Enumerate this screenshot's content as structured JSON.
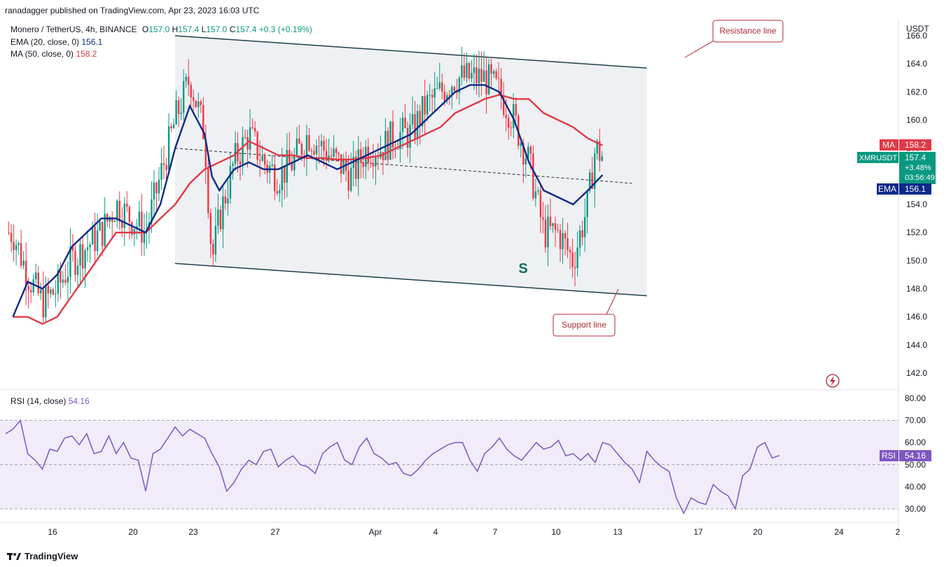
{
  "publisher": "ranadagger published on TradingView.com, Apr 23, 2023 16:03 UTC",
  "legend": {
    "symbol": "Monero / TetherUS, 4h, BINANCE",
    "ohlc": {
      "o_label": "O",
      "o": "157.0",
      "h_label": "H",
      "h": "157.4",
      "l_label": "L",
      "l": "157.0",
      "c_label": "C",
      "c": "157.4",
      "change": "+0.3 (+0.19%)"
    },
    "ema_label": "EMA (20, close, 0)",
    "ema_value": "156.1",
    "ma_label": "MA (50, close, 0)",
    "ma_value": "158.2",
    "rsi_label": "RSI (14, close)",
    "rsi_value": "54.16"
  },
  "annotations": {
    "resistance": "Resistance line",
    "support": "Support line",
    "pattern_letter": "S"
  },
  "badges": {
    "ma_tag": "MA",
    "ma_price": "158.2",
    "symbol_tag": "XMRUSDT",
    "last_price": "157.4",
    "change_pct": "+3.48%",
    "countdown": "03:56:49",
    "ema_tag": "EMA",
    "ema_price": "156.1",
    "rsi_tag": "RSI",
    "rsi_value": "54.16"
  },
  "footer": {
    "brand": "TradingView"
  },
  "colors": {
    "up": "#089981",
    "down": "#f23645",
    "ema": "#0d2a8a",
    "ma": "#e03a47",
    "rsi": "#7e57c2",
    "channel": "#1e3f4a",
    "annotation": "#b22833"
  },
  "chart_data": [
    {
      "type": "candlestick",
      "title": "Monero / TetherUS, 4h, BINANCE",
      "ylabel": "USDT",
      "ylim": [
        141,
        167
      ],
      "y_ticks": [
        "142.0",
        "144.0",
        "146.0",
        "148.0",
        "150.0",
        "152.0",
        "154.0",
        "156.0",
        "158.0",
        "160.0",
        "162.0",
        "164.0",
        "166.0"
      ],
      "x_ticks": [
        "16",
        "20",
        "23",
        "27",
        "Apr",
        "4",
        "7",
        "10",
        "13",
        "17",
        "20",
        "24",
        "2"
      ],
      "grid": false,
      "series": [
        {
          "name": "XMRUSDT",
          "anchors": [
            [
              14,
              152
            ],
            [
              15,
              149
            ],
            [
              16,
              147
            ],
            [
              17,
              148
            ],
            [
              18,
              150
            ],
            [
              19,
              151
            ],
            [
              20,
              152
            ],
            [
              21,
              154
            ],
            [
              22,
              153
            ],
            [
              23,
              152
            ],
            [
              24,
              156
            ],
            [
              25,
              160
            ],
            [
              26,
              163
            ],
            [
              27,
              159
            ],
            [
              27.5,
              150
            ],
            [
              28,
              153
            ],
            [
              29,
              157
            ],
            [
              30,
              159
            ],
            [
              31,
              157
            ],
            [
              32,
              156
            ],
            [
              33,
              157
            ],
            [
              34,
              159
            ],
            [
              35,
              158
            ],
            [
              36,
              157
            ],
            [
              37,
              156
            ],
            [
              38,
              158
            ],
            [
              39,
              158
            ],
            [
              40,
              159
            ],
            [
              41,
              159
            ],
            [
              42,
              161
            ],
            [
              43,
              162
            ],
            [
              44,
              163
            ],
            [
              45,
              163
            ],
            [
              46,
              163
            ],
            [
              47,
              162
            ],
            [
              48,
              160
            ],
            [
              49,
              157
            ],
            [
              50,
              152
            ],
            [
              51,
              152
            ],
            [
              52,
              150
            ],
            [
              53,
              154
            ],
            [
              53.5,
              158
            ],
            [
              54,
              157.4
            ]
          ]
        },
        {
          "name": "EMA (20, close, 0)",
          "anchors": [
            [
              14,
              146
            ],
            [
              15,
              148.5
            ],
            [
              16,
              148
            ],
            [
              17,
              149
            ],
            [
              18,
              151
            ],
            [
              19,
              152
            ],
            [
              20,
              153
            ],
            [
              21,
              153
            ],
            [
              22,
              152.5
            ],
            [
              23,
              152
            ],
            [
              24,
              154
            ],
            [
              25,
              158
            ],
            [
              26,
              161
            ],
            [
              27,
              159
            ],
            [
              27.5,
              156
            ],
            [
              28,
              155
            ],
            [
              29,
              156.5
            ],
            [
              30,
              157
            ],
            [
              31,
              156.5
            ],
            [
              32,
              156.5
            ],
            [
              33,
              157
            ],
            [
              34,
              157.5
            ],
            [
              35,
              157
            ],
            [
              36,
              156.5
            ],
            [
              37,
              157
            ],
            [
              38,
              157.5
            ],
            [
              39,
              158
            ],
            [
              40,
              158.5
            ],
            [
              41,
              159
            ],
            [
              42,
              160
            ],
            [
              43,
              161
            ],
            [
              44,
              162
            ],
            [
              45,
              162.5
            ],
            [
              46,
              162.5
            ],
            [
              47,
              162
            ],
            [
              48,
              160
            ],
            [
              49,
              157
            ],
            [
              50,
              155
            ],
            [
              51,
              154.5
            ],
            [
              52,
              154
            ],
            [
              53,
              155
            ],
            [
              54,
              156.1
            ]
          ]
        },
        {
          "name": "MA (50, close, 0)",
          "anchors": [
            [
              14,
              146
            ],
            [
              15,
              146
            ],
            [
              16,
              145.5
            ],
            [
              17,
              146
            ],
            [
              18,
              147.5
            ],
            [
              19,
              149
            ],
            [
              20,
              150.5
            ],
            [
              21,
              152
            ],
            [
              22,
              152
            ],
            [
              23,
              152
            ],
            [
              24,
              153
            ],
            [
              25,
              154
            ],
            [
              26,
              155.5
            ],
            [
              27,
              156.5
            ],
            [
              28,
              157
            ],
            [
              29,
              157.5
            ],
            [
              30,
              158.5
            ],
            [
              31,
              158
            ],
            [
              32,
              157.5
            ],
            [
              33,
              157.5
            ],
            [
              34,
              157.3
            ],
            [
              35,
              157.3
            ],
            [
              36,
              157.2
            ],
            [
              37,
              157.2
            ],
            [
              38,
              157.3
            ],
            [
              39,
              157.5
            ],
            [
              40,
              158
            ],
            [
              41,
              158.5
            ],
            [
              42,
              159
            ],
            [
              43,
              159.5
            ],
            [
              44,
              160.5
            ],
            [
              45,
              161
            ],
            [
              46,
              161.5
            ],
            [
              47,
              161.8
            ],
            [
              48,
              161.5
            ],
            [
              49,
              161.5
            ],
            [
              50,
              160.5
            ],
            [
              51,
              160
            ],
            [
              52,
              159.5
            ],
            [
              53,
              158.7
            ],
            [
              54,
              158.2
            ]
          ]
        }
      ],
      "trendlines": [
        {
          "name": "Resistance line",
          "from": [
            25,
            166
          ],
          "to": [
            57,
            163.7
          ]
        },
        {
          "name": "Support line",
          "from": [
            25,
            149.8
          ],
          "to": [
            57,
            147.5
          ]
        },
        {
          "name": "dashed",
          "from": [
            25,
            158
          ],
          "to": [
            56,
            155.5
          ]
        }
      ]
    },
    {
      "type": "line",
      "title": "RSI (14, close)",
      "ylim": [
        25,
        83
      ],
      "y_ticks": [
        "30.00",
        "40.00",
        "50.00",
        "60.00",
        "70.00",
        "80.00"
      ],
      "bands": [
        30,
        50,
        70
      ],
      "series": [
        {
          "name": "RSI",
          "anchors": [
            [
              13.5,
              64
            ],
            [
              14,
              66
            ],
            [
              14.5,
              70
            ],
            [
              15,
              55
            ],
            [
              15.5,
              52
            ],
            [
              16,
              48
            ],
            [
              16.5,
              57
            ],
            [
              17,
              56
            ],
            [
              17.5,
              62
            ],
            [
              18,
              63
            ],
            [
              18.5,
              59
            ],
            [
              19,
              64
            ],
            [
              19.5,
              55
            ],
            [
              20,
              56
            ],
            [
              20.5,
              63
            ],
            [
              21,
              55
            ],
            [
              21.5,
              60
            ],
            [
              22,
              53
            ],
            [
              22.5,
              52
            ],
            [
              23,
              38
            ],
            [
              23.5,
              55
            ],
            [
              24,
              57
            ],
            [
              24.5,
              62
            ],
            [
              25,
              67
            ],
            [
              25.5,
              63
            ],
            [
              26,
              66
            ],
            [
              26.5,
              64
            ],
            [
              27,
              62
            ],
            [
              27.5,
              55
            ],
            [
              28,
              49
            ],
            [
              28.5,
              38
            ],
            [
              29,
              42
            ],
            [
              29.5,
              48
            ],
            [
              30,
              52
            ],
            [
              30.5,
              50
            ],
            [
              31,
              56
            ],
            [
              31.5,
              57
            ],
            [
              32,
              49
            ],
            [
              32.5,
              52
            ],
            [
              33,
              54
            ],
            [
              33.5,
              50
            ],
            [
              34,
              49
            ],
            [
              34.5,
              46
            ],
            [
              35,
              55
            ],
            [
              35.5,
              58
            ],
            [
              36,
              60
            ],
            [
              36.5,
              52
            ],
            [
              37,
              50
            ],
            [
              37.5,
              58
            ],
            [
              38,
              62
            ],
            [
              38.5,
              55
            ],
            [
              39,
              53
            ],
            [
              39.5,
              50
            ],
            [
              40,
              51
            ],
            [
              40.5,
              46
            ],
            [
              41,
              45
            ],
            [
              41.5,
              48
            ],
            [
              42,
              52
            ],
            [
              42.5,
              55
            ],
            [
              43,
              57
            ],
            [
              43.5,
              59
            ],
            [
              44,
              60
            ],
            [
              44.5,
              60
            ],
            [
              45,
              52
            ],
            [
              45.5,
              47
            ],
            [
              46,
              55
            ],
            [
              46.5,
              58
            ],
            [
              47,
              62
            ],
            [
              47.5,
              57
            ],
            [
              48,
              54
            ],
            [
              48.5,
              52
            ],
            [
              49,
              56
            ],
            [
              49.5,
              60
            ],
            [
              50,
              57
            ],
            [
              50.5,
              58
            ],
            [
              51,
              61
            ],
            [
              51.5,
              54
            ],
            [
              52,
              55
            ],
            [
              52.5,
              52
            ],
            [
              53,
              55
            ],
            [
              53.5,
              51
            ],
            [
              54,
              60
            ],
            [
              54.5,
              59
            ],
            [
              55,
              55
            ],
            [
              55.5,
              51
            ],
            [
              56,
              48
            ],
            [
              56.5,
              42
            ],
            [
              57,
              56
            ],
            [
              57.5,
              52
            ],
            [
              58,
              49
            ],
            [
              58.5,
              47
            ],
            [
              59,
              35
            ],
            [
              59.5,
              28
            ],
            [
              60,
              35
            ],
            [
              60.5,
              33
            ],
            [
              61,
              32
            ],
            [
              61.5,
              41
            ],
            [
              62,
              38
            ],
            [
              62.5,
              36
            ],
            [
              63,
              30
            ],
            [
              63.5,
              45
            ],
            [
              64,
              48
            ],
            [
              64.5,
              58
            ],
            [
              65,
              60
            ],
            [
              65.5,
              53
            ],
            [
              66,
              54.16
            ]
          ]
        }
      ]
    }
  ]
}
